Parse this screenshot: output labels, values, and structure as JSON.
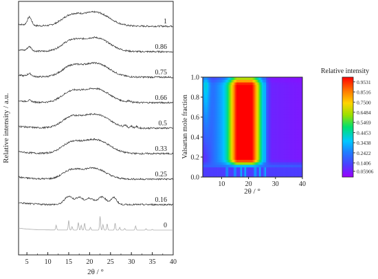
{
  "chart_data": [
    {
      "type": "line",
      "xlabel": "2θ / °",
      "ylabel": "Relative intensity / a.u.",
      "xlim": [
        3,
        40
      ],
      "xticks": [
        5,
        10,
        15,
        20,
        25,
        30,
        35,
        40
      ],
      "series": [
        {
          "name": "1",
          "color": "#2b2b2b",
          "peaks": [
            [
              5.6,
              0.6,
              0.5
            ],
            [
              15.5,
              0.7,
              2.3
            ],
            [
              21.5,
              1.0,
              3.2
            ]
          ]
        },
        {
          "name": "0.86",
          "color": "#2b2b2b",
          "peaks": [
            [
              5.6,
              0.3,
              0.5
            ],
            [
              15.5,
              0.7,
              2.3
            ],
            [
              21.5,
              1.0,
              3.2
            ]
          ]
        },
        {
          "name": "0.75",
          "color": "#2b2b2b",
          "peaks": [
            [
              5.6,
              0.2,
              0.5
            ],
            [
              15.5,
              0.7,
              2.3
            ],
            [
              21.5,
              1.0,
              3.2
            ]
          ]
        },
        {
          "name": "0.66",
          "color": "#2b2b2b",
          "peaks": [
            [
              5.6,
              0.1,
              0.5
            ],
            [
              15.5,
              0.7,
              2.3
            ],
            [
              21.5,
              1.0,
              3.2
            ],
            [
              29.5,
              0.1,
              0.4
            ]
          ]
        },
        {
          "name": "0.5",
          "color": "#2b2b2b",
          "peaks": [
            [
              15.5,
              0.7,
              2.3
            ],
            [
              21.5,
              1.0,
              3.2
            ],
            [
              28.5,
              0.15,
              0.3
            ],
            [
              30,
              0.12,
              0.3
            ],
            [
              31.2,
              0.1,
              0.3
            ]
          ]
        },
        {
          "name": "0.33",
          "color": "#2b2b2b",
          "peaks": [
            [
              15.5,
              0.7,
              2.3
            ],
            [
              21.5,
              1.0,
              3.2
            ]
          ]
        },
        {
          "name": "0.25",
          "color": "#2b2b2b",
          "peaks": [
            [
              15.5,
              0.6,
              2.0
            ],
            [
              21,
              0.8,
              2.8
            ]
          ]
        },
        {
          "name": "0.16",
          "color": "#2b2b2b",
          "peaks": [
            [
              15,
              0.6,
              1.0
            ],
            [
              17.5,
              0.5,
              0.8
            ],
            [
              20,
              0.45,
              1.0
            ],
            [
              23,
              0.55,
              1.0
            ],
            [
              25.8,
              0.5,
              0.7
            ]
          ]
        },
        {
          "name": "0",
          "color": "#aaaaaa",
          "peaks": [
            [
              12,
              0.35,
              0.12
            ],
            [
              15,
              0.7,
              0.12
            ],
            [
              15.8,
              0.25,
              0.12
            ],
            [
              17.3,
              0.55,
              0.12
            ],
            [
              18,
              0.35,
              0.12
            ],
            [
              18.8,
              0.5,
              0.12
            ],
            [
              20.2,
              0.2,
              0.12
            ],
            [
              22.5,
              1.0,
              0.12
            ],
            [
              23.2,
              0.4,
              0.12
            ],
            [
              24.2,
              0.45,
              0.12
            ],
            [
              26.1,
              0.5,
              0.12
            ],
            [
              27.2,
              0.2,
              0.12
            ],
            [
              28.4,
              0.12,
              0.12
            ],
            [
              31,
              0.3,
              0.12
            ],
            [
              33.5,
              0.1,
              0.12
            ],
            [
              35,
              0.05,
              0.12
            ]
          ]
        }
      ]
    },
    {
      "type": "heatmap",
      "xlabel": "2θ / °",
      "ylabel": "Valsartan mole fraction",
      "xlim": [
        3,
        40
      ],
      "ylim": [
        0,
        1
      ],
      "xticks": [
        10,
        20,
        30,
        40
      ],
      "yticks": [
        "0.0",
        "0.2",
        "0.4",
        "0.6",
        "0.8",
        "1.0"
      ],
      "colorbar_title": "Relative intensity",
      "colorbar_ticks": [
        "0.9531",
        "0.8516",
        "0.7500",
        "0.6484",
        "0.5469",
        "0.4453",
        "0.3438",
        "0.2422",
        "0.1406",
        "0.05906"
      ],
      "colorbar_range": [
        0,
        1
      ]
    }
  ]
}
